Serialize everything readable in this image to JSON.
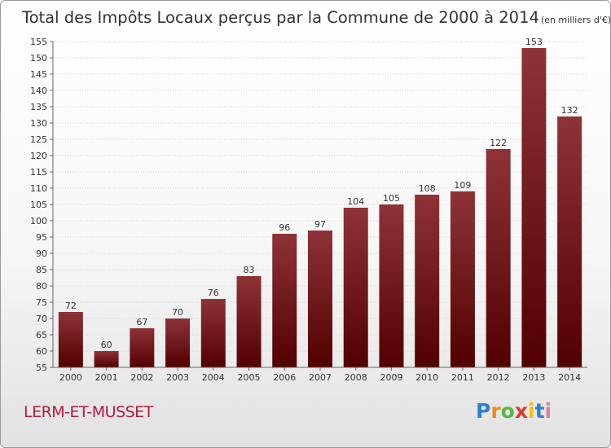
{
  "chart_data": {
    "type": "bar",
    "title": "Total des Impôts Locaux perçus par la Commune de 2000 à 2014",
    "unit": "(en milliers d'€)",
    "categories": [
      "2000",
      "2001",
      "2002",
      "2003",
      "2004",
      "2005",
      "2006",
      "2007",
      "2008",
      "2009",
      "2010",
      "2011",
      "2012",
      "2013",
      "2014"
    ],
    "values": [
      72,
      60,
      67,
      70,
      76,
      83,
      96,
      97,
      104,
      105,
      108,
      109,
      122,
      153,
      132
    ],
    "ylim": [
      55,
      155
    ],
    "ytick_step": 5,
    "bar_color_top": "#8e3338",
    "bar_color_bottom": "#520000",
    "xlabel": "",
    "ylabel": ""
  },
  "commune": "LERM-ET-MUSSET",
  "logo": {
    "letters": [
      "P",
      "r",
      "o",
      "x",
      "i",
      "t",
      "i"
    ],
    "colors": [
      "#2f7fd0",
      "#f08a18",
      "#56b848",
      "#e03a2a",
      "#f0c010",
      "#2f7fd0",
      "#e07aa0"
    ]
  }
}
